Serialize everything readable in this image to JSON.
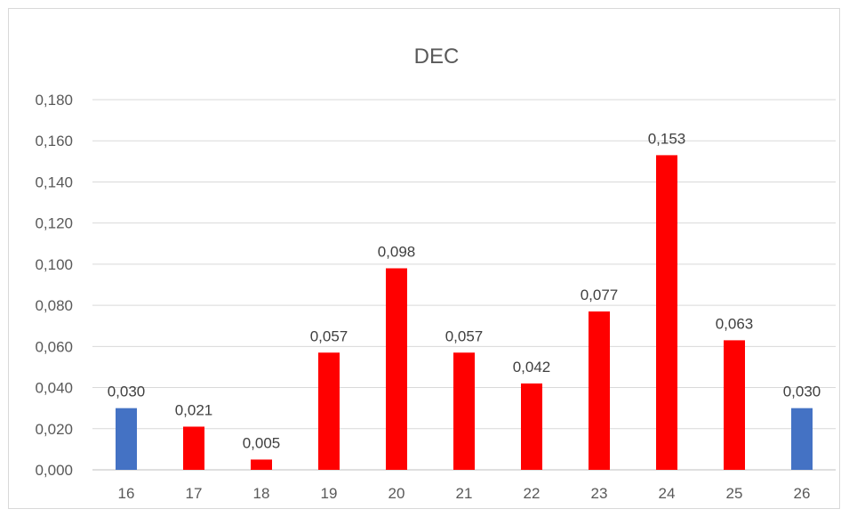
{
  "chart_data": {
    "type": "bar",
    "title": "DEC",
    "xlabel": "",
    "ylabel": "",
    "categories": [
      "16",
      "17",
      "18",
      "19",
      "20",
      "21",
      "22",
      "23",
      "24",
      "25",
      "26"
    ],
    "values": [
      0.03,
      0.021,
      0.005,
      0.057,
      0.098,
      0.057,
      0.042,
      0.077,
      0.153,
      0.063,
      0.03
    ],
    "data_labels": [
      "0,030",
      "0,021",
      "0,005",
      "0,057",
      "0,098",
      "0,057",
      "0,042",
      "0,077",
      "0,153",
      "0,063",
      "0,030"
    ],
    "bar_colors": [
      "#4472c4",
      "#ff0000",
      "#ff0000",
      "#ff0000",
      "#ff0000",
      "#ff0000",
      "#ff0000",
      "#ff0000",
      "#ff0000",
      "#ff0000",
      "#4472c4"
    ],
    "ylim": [
      0,
      0.18
    ],
    "yticks": [
      0,
      0.02,
      0.04,
      0.06,
      0.08,
      0.1,
      0.12,
      0.14,
      0.16,
      0.18
    ],
    "ytick_labels": [
      "0,000",
      "0,020",
      "0,040",
      "0,060",
      "0,080",
      "0,100",
      "0,120",
      "0,140",
      "0,160",
      "0,180"
    ],
    "grid": true,
    "legend": "none"
  }
}
